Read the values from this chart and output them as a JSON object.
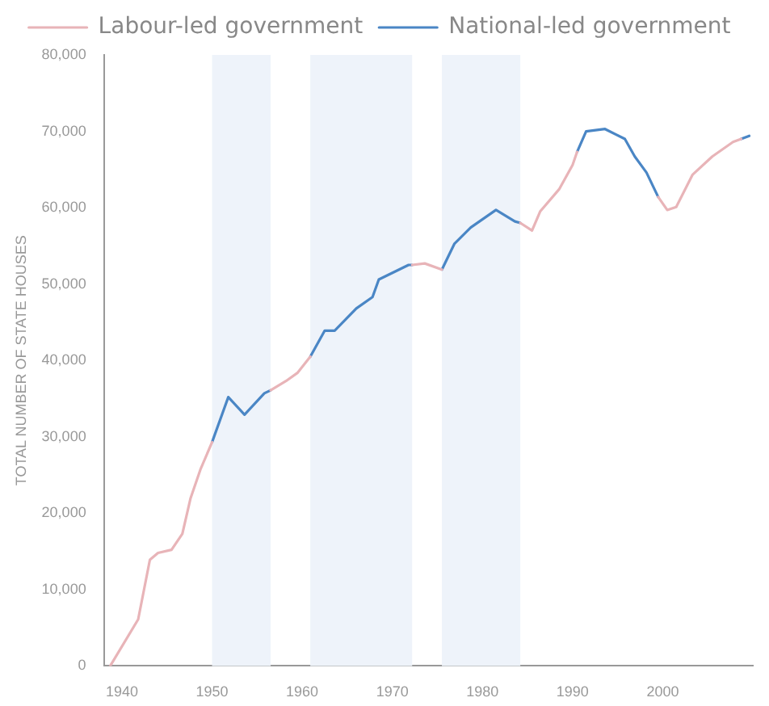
{
  "chart_data": {
    "type": "line",
    "ylabel": "TOTAL NUMBER OF STATE HOUSES",
    "xlim": [
      1938,
      2010
    ],
    "xticks": [
      1940,
      1950,
      1960,
      1970,
      1980,
      1990,
      2000
    ],
    "ylim": [
      0,
      80000
    ],
    "yticks": [
      0,
      {
        "value": 10000,
        "label": "10,000"
      },
      {
        "value": 20000,
        "label": "20,000"
      },
      {
        "value": 30000,
        "label": "30,000"
      },
      {
        "value": 40000,
        "label": "40,000"
      },
      {
        "value": 50000,
        "label": "50,000"
      },
      {
        "value": 60000,
        "label": "60,000"
      },
      {
        "value": 70000,
        "label": "70,000"
      },
      {
        "value": 80000,
        "label": "80,000"
      }
    ],
    "grid": false,
    "legend": "top",
    "marker": "none",
    "line_style": "solid",
    "bands": [
      {
        "axis": "x",
        "from": 1950,
        "to": 1956.5,
        "color": "#eef3fa"
      },
      {
        "axis": "x",
        "from": 1960.9,
        "to": 1972.2,
        "color": "#eef3fa"
      },
      {
        "axis": "x",
        "from": 1975.5,
        "to": 1984.2,
        "color": "#eef3fa"
      }
    ],
    "series": [
      {
        "name": "Labour-led government",
        "color": "#e8b4b8",
        "x": [
          1938.7,
          1941.8,
          1943.1,
          1944,
          1945.5,
          1946.7,
          1947.6,
          1948.7,
          1950,
          1953,
          1956.5,
          1958.2,
          1959.5,
          1960.9,
          1966,
          1972.2,
          1973.6,
          1975.5,
          1980,
          1984.2,
          1985.5,
          1986.4,
          1988.5,
          1990,
          1990.5,
          1995,
          1999.5,
          2000.5,
          2001.5,
          2003.3,
          2005.5,
          2007.8,
          2008.7
        ],
        "values": [
          0,
          6100,
          13900,
          14800,
          15200,
          17300,
          21900,
          25700,
          29300,
          null,
          36100,
          37300,
          38400,
          40500,
          null,
          52500,
          52700,
          51900,
          null,
          58000,
          57000,
          59500,
          62400,
          65600,
          67300,
          null,
          61400,
          59700,
          60100,
          64300,
          66700,
          68600,
          69000
        ]
      },
      {
        "name": "National-led government",
        "color": "#4a86c5",
        "x": [
          1950,
          1951.8,
          1953.6,
          1955.8,
          1956.5,
          1958,
          1960.9,
          1962.5,
          1963.6,
          1966,
          1967.8,
          1968.5,
          1971.8,
          1972.2,
          1974,
          1975.5,
          1976.9,
          1978.7,
          1981.5,
          1983.6,
          1984.2,
          1987,
          1990.5,
          1991.5,
          1993.6,
          1995.8,
          1996.9,
          1998.2,
          1999.5,
          2004,
          2008.7,
          2009.6
        ],
        "values": [
          29300,
          35200,
          32900,
          35700,
          36100,
          null,
          40500,
          43900,
          43900,
          46800,
          48300,
          50600,
          52500,
          52500,
          null,
          51900,
          55300,
          57400,
          59700,
          58200,
          58000,
          null,
          67300,
          70000,
          70300,
          69000,
          66700,
          64600,
          61400,
          null,
          69000,
          69400
        ]
      }
    ]
  }
}
